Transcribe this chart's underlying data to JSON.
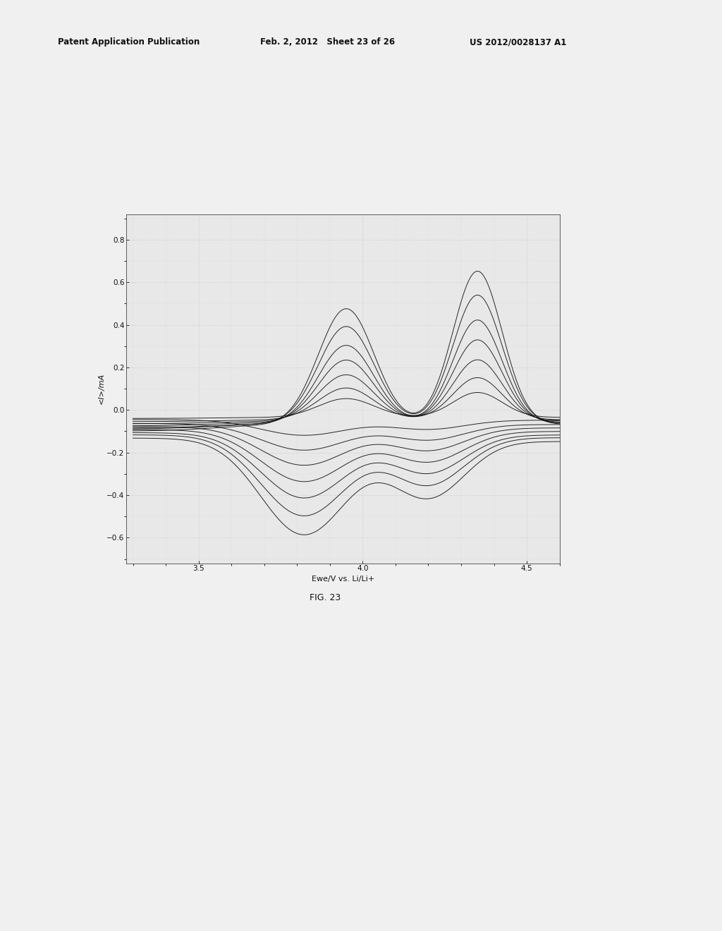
{
  "title": "FIG. 23",
  "xlabel": "Ewe/V vs. Li/Li+",
  "ylabel": "<I>/mA",
  "xlim": [
    3.28,
    4.6
  ],
  "ylim": [
    -0.72,
    0.92
  ],
  "xticks": [
    3.5,
    4.0,
    4.5
  ],
  "yticks": [
    -0.6,
    -0.4,
    -0.2,
    0.0,
    0.2,
    0.4,
    0.6,
    0.8
  ],
  "background_color": "#f0f0f0",
  "plot_bg_color": "#e8e8e8",
  "line_color": "#111111",
  "grid_color": "#bbbbbb",
  "header_left": "Patent Application Publication",
  "header_mid": "Feb. 2, 2012   Sheet 23 of 26",
  "header_right": "US 2012/0028137 A1",
  "fig_label": "FIG. 23",
  "page_width": 10.24,
  "page_height": 13.2
}
